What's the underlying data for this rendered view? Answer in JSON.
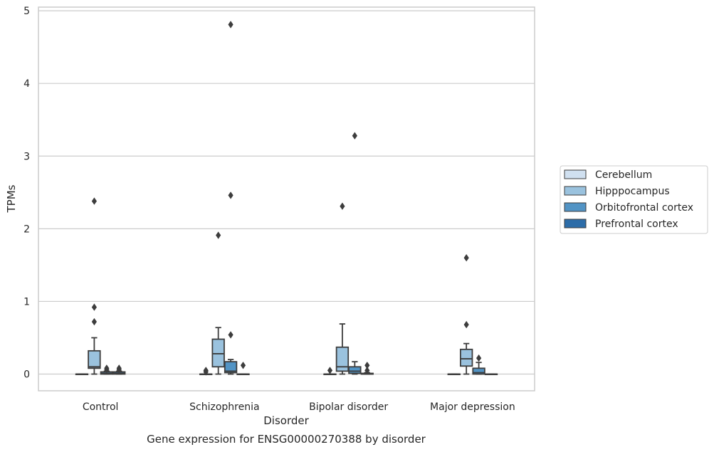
{
  "chart_data": {
    "type": "box",
    "title": "",
    "caption": "Gene expression for ENSG00000270388 by disorder",
    "xlabel": "Disorder",
    "ylabel": "TPMs",
    "ylim": [
      -0.23,
      5.05
    ],
    "yticks": [
      0,
      1,
      2,
      3,
      4,
      5
    ],
    "grid": "horizontal",
    "legend_position": "right",
    "categories": [
      "Control",
      "Schizophrenia",
      "Bipolar disorder",
      "Major depression"
    ],
    "series": [
      {
        "name": "Cerebellum",
        "color": "#d0e0f0",
        "boxes": [
          {
            "min": 0,
            "q1": 0,
            "median": 0,
            "q3": 0,
            "max": 0,
            "outliers": []
          },
          {
            "min": 0,
            "q1": 0,
            "median": 0,
            "q3": 0,
            "max": 0,
            "outliers": [
              0.03,
              0.05
            ]
          },
          {
            "min": 0,
            "q1": 0,
            "median": 0,
            "q3": 0,
            "max": 0,
            "outliers": [
              0.05
            ]
          },
          {
            "min": 0,
            "q1": 0,
            "median": 0,
            "q3": 0,
            "max": 0,
            "outliers": []
          }
        ]
      },
      {
        "name": "Hipppocampus",
        "color": "#9ac2de",
        "boxes": [
          {
            "min": 0,
            "q1": 0.08,
            "median": 0.1,
            "q3": 0.32,
            "max": 0.5,
            "outliers": [
              0.72,
              0.92,
              2.38
            ]
          },
          {
            "min": 0,
            "q1": 0.1,
            "median": 0.28,
            "q3": 0.48,
            "max": 0.64,
            "outliers": [
              1.91
            ]
          },
          {
            "min": 0,
            "q1": 0.04,
            "median": 0.1,
            "q3": 0.37,
            "max": 0.69,
            "outliers": [
              2.31
            ]
          },
          {
            "min": 0,
            "q1": 0.11,
            "median": 0.21,
            "q3": 0.34,
            "max": 0.42,
            "outliers": [
              0.68,
              1.6
            ]
          }
        ]
      },
      {
        "name": "Orbitofrontal cortex",
        "color": "#5294c5",
        "boxes": [
          {
            "min": 0,
            "q1": 0,
            "median": 0.01,
            "q3": 0.03,
            "max": 0.04,
            "outliers": [
              0.06,
              0.08
            ]
          },
          {
            "min": 0,
            "q1": 0.02,
            "median": 0.04,
            "q3": 0.17,
            "max": 0.2,
            "outliers": [
              0.54,
              2.46,
              4.81
            ]
          },
          {
            "min": 0,
            "q1": 0.01,
            "median": 0.04,
            "q3": 0.1,
            "max": 0.17,
            "outliers": [
              3.28
            ]
          },
          {
            "min": 0,
            "q1": 0,
            "median": 0.02,
            "q3": 0.08,
            "max": 0.16,
            "outliers": [
              0.22
            ]
          }
        ]
      },
      {
        "name": "Prefrontal cortex",
        "color": "#2c6ca8",
        "boxes": [
          {
            "min": 0,
            "q1": 0,
            "median": 0.01,
            "q3": 0.03,
            "max": 0.04,
            "outliers": [
              0.06,
              0.08
            ]
          },
          {
            "min": 0,
            "q1": 0,
            "median": 0,
            "q3": 0,
            "max": 0,
            "outliers": [
              0.12
            ]
          },
          {
            "min": 0,
            "q1": 0,
            "median": 0,
            "q3": 0.01,
            "max": 0.02,
            "outliers": [
              0.05,
              0.12
            ]
          },
          {
            "min": 0,
            "q1": 0,
            "median": 0,
            "q3": 0,
            "max": 0,
            "outliers": []
          }
        ]
      }
    ]
  }
}
